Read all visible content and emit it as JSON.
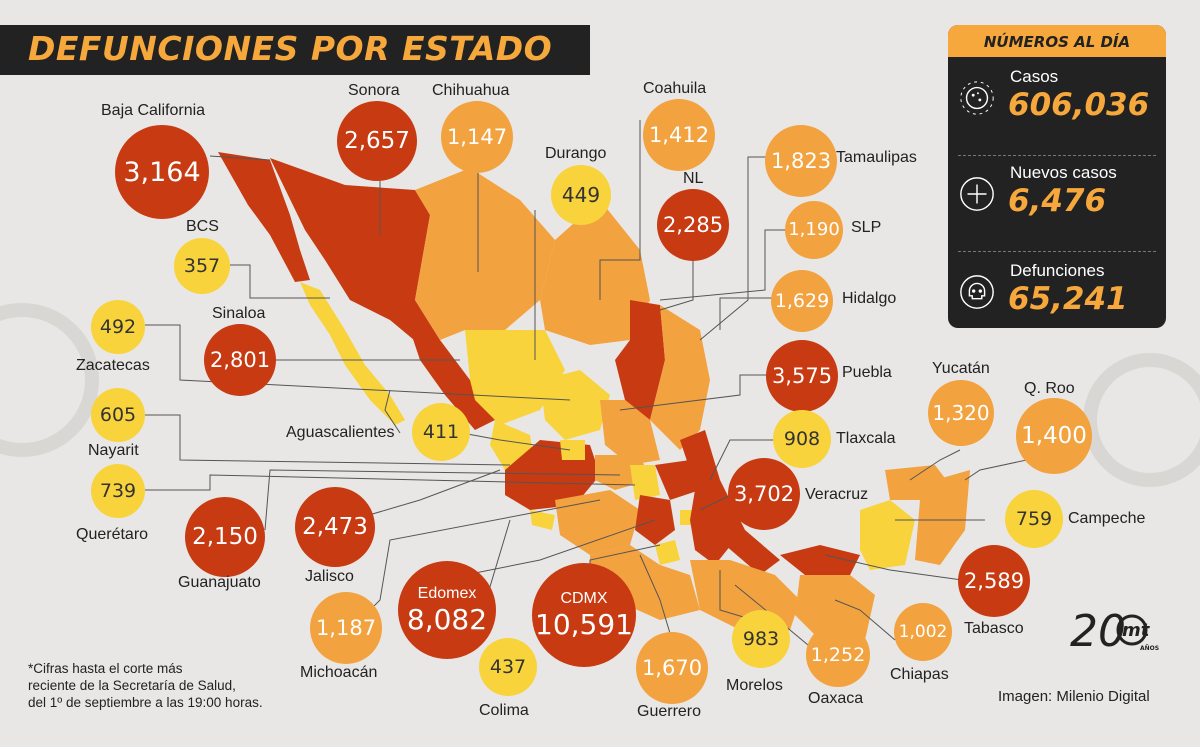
{
  "title": "DEFUNCIONES POR ESTADO",
  "panel": {
    "heading": "NÚMEROS AL DÍA",
    "stats": [
      {
        "label": "Casos",
        "value": "606,036",
        "icon": "virus-icon"
      },
      {
        "label": "Nuevos casos",
        "value": "6,476",
        "icon": "plus-icon"
      },
      {
        "label": "Defunciones",
        "value": "65,241",
        "icon": "skull-icon"
      }
    ]
  },
  "states": [
    {
      "name": "Baja California",
      "value": "3,164",
      "level": "red"
    },
    {
      "name": "Sonora",
      "value": "2,657",
      "level": "red"
    },
    {
      "name": "Chihuahua",
      "value": "1,147",
      "level": "orange"
    },
    {
      "name": "Coahuila",
      "value": "1,412",
      "level": "orange"
    },
    {
      "name": "Durango",
      "value": "449",
      "level": "yellow"
    },
    {
      "name": "NL",
      "value": "2,285",
      "level": "red"
    },
    {
      "name": "Tamaulipas",
      "value": "1,823",
      "level": "orange"
    },
    {
      "name": "SLP",
      "value": "1,190",
      "level": "orange"
    },
    {
      "name": "Hidalgo",
      "value": "1,629",
      "level": "orange"
    },
    {
      "name": "Puebla",
      "value": "3,575",
      "level": "red"
    },
    {
      "name": "Tlaxcala",
      "value": "908",
      "level": "yellow"
    },
    {
      "name": "Veracruz",
      "value": "3,702",
      "level": "red"
    },
    {
      "name": "Yucatán",
      "value": "1,320",
      "level": "orange"
    },
    {
      "name": "Q. Roo",
      "value": "1,400",
      "level": "orange"
    },
    {
      "name": "Campeche",
      "value": "759",
      "level": "yellow"
    },
    {
      "name": "Tabasco",
      "value": "2,589",
      "level": "red"
    },
    {
      "name": "Chiapas",
      "value": "1,002",
      "level": "orange"
    },
    {
      "name": "Oaxaca",
      "value": "1,252",
      "level": "orange"
    },
    {
      "name": "Morelos",
      "value": "983",
      "level": "yellow"
    },
    {
      "name": "Guerrero",
      "value": "1,670",
      "level": "orange"
    },
    {
      "name": "CDMX",
      "value": "10,591",
      "level": "red"
    },
    {
      "name": "Edomex",
      "value": "8,082",
      "level": "red"
    },
    {
      "name": "Colima",
      "value": "437",
      "level": "yellow"
    },
    {
      "name": "Michoacán",
      "value": "1,187",
      "level": "orange"
    },
    {
      "name": "Jalisco",
      "value": "2,473",
      "level": "red"
    },
    {
      "name": "Guanajuato",
      "value": "2,150",
      "level": "red"
    },
    {
      "name": "Querétaro",
      "value": "739",
      "level": "yellow"
    },
    {
      "name": "Nayarit",
      "value": "605",
      "level": "yellow"
    },
    {
      "name": "Zacatecas",
      "value": "492",
      "level": "yellow"
    },
    {
      "name": "Sinaloa",
      "value": "2,801",
      "level": "red"
    },
    {
      "name": "BCS",
      "value": "357",
      "level": "yellow"
    },
    {
      "name": "Aguascalientes",
      "value": "411",
      "level": "yellow"
    }
  ],
  "footnote": [
    "*Cifras hasta el corte más",
    "reciente de la Secretaría de Salud,",
    "del 1º de septiembre a las 19:00 horas."
  ],
  "credit": "Imagen: Milenio Digital",
  "logo_text": {
    "number": "20",
    "brand": "mt",
    "sub": "AÑOS"
  },
  "colors": {
    "red": "#c73a12",
    "orange": "#f2a23f",
    "yellow": "#f8d33c",
    "title_bg": "#222222",
    "accent": "#f7a83c",
    "background": "#e9e7e5"
  }
}
